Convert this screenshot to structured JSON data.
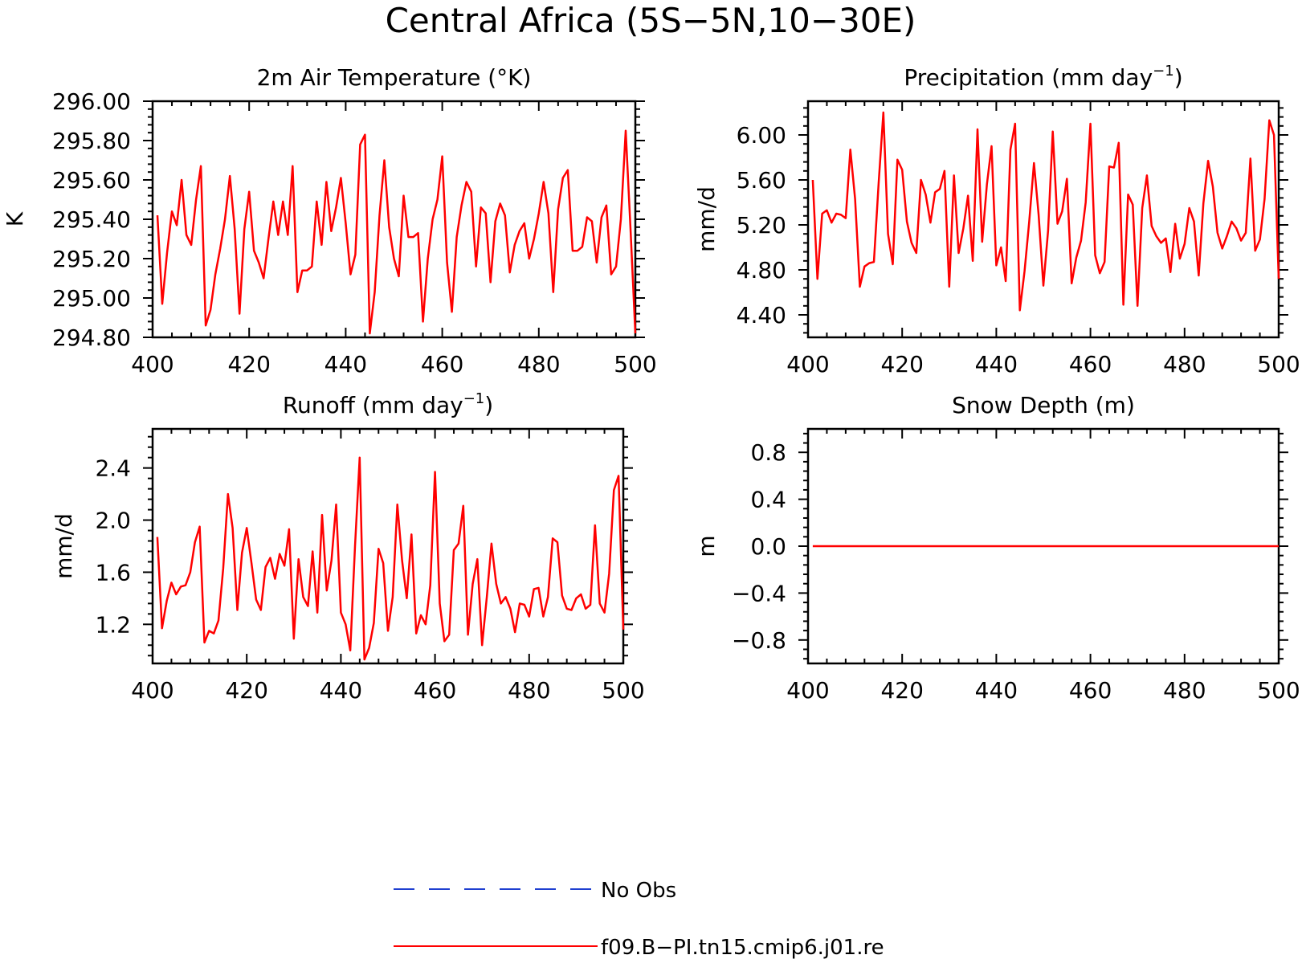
{
  "figure": {
    "title": "Central Africa (5S−5N,10−30E)"
  },
  "legend": [
    {
      "label": "No Obs",
      "color": "#1f3fd0",
      "dash": true
    },
    {
      "label": "f09.B−PI.tn15.cmip6.j01.re",
      "color": "#ff0000",
      "dash": false
    }
  ],
  "chart_data": [
    {
      "type": "line",
      "title": "2m Air Temperature (°K)",
      "ylabel": "K",
      "xlim": [
        400,
        500
      ],
      "ylim": [
        294.8,
        296.0
      ],
      "xticks": [
        400,
        420,
        440,
        460,
        480,
        500
      ],
      "yticks": [
        294.8,
        295.0,
        295.2,
        295.4,
        295.6,
        295.8,
        296.0
      ],
      "ytick_labels": [
        "294.80",
        "295.00",
        "295.20",
        "295.40",
        "295.60",
        "295.80",
        "296.00"
      ],
      "series": [
        {
          "name": "f09.B−PI.tn15.cmip6.j01.re",
          "color": "#ff0000",
          "x_start": 401,
          "values": [
            295.42,
            294.97,
            295.23,
            295.44,
            295.37,
            295.6,
            295.32,
            295.27,
            295.5,
            295.67,
            294.86,
            294.94,
            295.12,
            295.25,
            295.4,
            295.62,
            295.35,
            294.92,
            295.35,
            295.54,
            295.24,
            295.18,
            295.1,
            295.3,
            295.49,
            295.32,
            295.49,
            295.32,
            295.67,
            295.03,
            295.14,
            295.14,
            295.16,
            295.49,
            295.27,
            295.59,
            295.34,
            295.46,
            295.61,
            295.38,
            295.12,
            295.22,
            295.78,
            295.83,
            294.82,
            295.03,
            295.42,
            295.7,
            295.36,
            295.2,
            295.11,
            295.52,
            295.31,
            295.31,
            295.33,
            294.88,
            295.2,
            295.4,
            295.5,
            295.72,
            295.18,
            294.93,
            295.31,
            295.47,
            295.59,
            295.54,
            295.16,
            295.46,
            295.43,
            295.08,
            295.39,
            295.48,
            295.42,
            295.13,
            295.27,
            295.34,
            295.38,
            295.2,
            295.3,
            295.43,
            295.59,
            295.43,
            295.03,
            295.45,
            295.61,
            295.65,
            295.24,
            295.24,
            295.26,
            295.41,
            295.39,
            295.18,
            295.41,
            295.47,
            295.12,
            295.16,
            295.4,
            295.85,
            295.35,
            294.82
          ]
        }
      ]
    },
    {
      "type": "line",
      "title": "Precipitation (mm day",
      "title_sup": "−1",
      "title_end": ")",
      "ylabel": "mm/d",
      "xlim": [
        400,
        500
      ],
      "ylim": [
        4.2,
        6.3
      ],
      "xticks": [
        400,
        420,
        440,
        460,
        480,
        500
      ],
      "yticks": [
        4.4,
        4.8,
        5.2,
        5.6,
        6.0
      ],
      "ytick_labels": [
        "4.40",
        "4.80",
        "5.20",
        "5.60",
        "6.00"
      ],
      "series": [
        {
          "name": "f09.B−PI.tn15.cmip6.j01.re",
          "color": "#ff0000",
          "x_start": 401,
          "values": [
            5.6,
            4.72,
            5.3,
            5.33,
            5.22,
            5.3,
            5.29,
            5.26,
            5.87,
            5.43,
            4.65,
            4.83,
            4.86,
            4.87,
            5.57,
            6.2,
            5.12,
            4.85,
            5.78,
            5.69,
            5.23,
            5.04,
            4.95,
            5.6,
            5.47,
            5.22,
            5.49,
            5.52,
            5.68,
            4.65,
            5.64,
            4.95,
            5.17,
            5.46,
            4.88,
            6.05,
            5.05,
            5.56,
            5.9,
            4.84,
            5.0,
            4.7,
            5.87,
            6.1,
            4.44,
            4.79,
            5.23,
            5.75,
            5.29,
            4.66,
            5.15,
            6.03,
            5.21,
            5.32,
            5.61,
            4.68,
            4.91,
            5.06,
            5.4,
            6.1,
            4.93,
            4.77,
            4.87,
            5.72,
            5.71,
            5.93,
            4.49,
            5.47,
            5.38,
            4.48,
            5.35,
            5.64,
            5.19,
            5.1,
            5.04,
            5.08,
            4.78,
            5.21,
            4.9,
            5.03,
            5.35,
            5.23,
            4.75,
            5.39,
            5.77,
            5.54,
            5.13,
            4.99,
            5.1,
            5.23,
            5.17,
            5.06,
            5.13,
            5.79,
            4.97,
            5.07,
            5.43,
            6.13,
            6.0,
            4.72
          ]
        }
      ]
    },
    {
      "type": "line",
      "title": "Runoff (mm day",
      "title_sup": "−1",
      "title_end": ")",
      "ylabel": "mm/d",
      "xlim": [
        400,
        500
      ],
      "ylim": [
        0.9,
        2.7
      ],
      "xticks": [
        400,
        420,
        440,
        460,
        480,
        500
      ],
      "yticks": [
        1.2,
        1.6,
        2.0,
        2.4
      ],
      "ytick_labels": [
        "1.2",
        "1.6",
        "2.0",
        "2.4"
      ],
      "series": [
        {
          "name": "f09.B−PI.tn15.cmip6.j01.re",
          "color": "#ff0000",
          "x_start": 401,
          "values": [
            1.87,
            1.17,
            1.38,
            1.52,
            1.43,
            1.49,
            1.5,
            1.6,
            1.83,
            1.95,
            1.06,
            1.15,
            1.13,
            1.23,
            1.63,
            2.2,
            1.94,
            1.31,
            1.75,
            1.94,
            1.67,
            1.39,
            1.31,
            1.64,
            1.71,
            1.55,
            1.74,
            1.65,
            1.93,
            1.09,
            1.7,
            1.41,
            1.34,
            1.76,
            1.29,
            2.04,
            1.46,
            1.69,
            2.12,
            1.29,
            1.2,
            1.0,
            1.8,
            2.48,
            0.93,
            1.02,
            1.21,
            1.78,
            1.67,
            1.15,
            1.41,
            2.12,
            1.69,
            1.4,
            1.89,
            1.13,
            1.27,
            1.2,
            1.5,
            2.37,
            1.36,
            1.07,
            1.12,
            1.77,
            1.82,
            2.11,
            1.12,
            1.51,
            1.7,
            1.04,
            1.41,
            1.82,
            1.51,
            1.36,
            1.41,
            1.32,
            1.14,
            1.36,
            1.35,
            1.26,
            1.47,
            1.48,
            1.26,
            1.41,
            1.86,
            1.83,
            1.42,
            1.32,
            1.31,
            1.4,
            1.43,
            1.32,
            1.35,
            1.96,
            1.36,
            1.29,
            1.59,
            2.23,
            2.34,
            1.16
          ]
        }
      ]
    },
    {
      "type": "line",
      "title": "Snow Depth (m)",
      "ylabel": "m",
      "xlim": [
        400,
        500
      ],
      "ylim": [
        -1.0,
        1.0
      ],
      "xticks": [
        400,
        420,
        440,
        460,
        480,
        500
      ],
      "yticks": [
        -0.8,
        -0.4,
        0.0,
        0.4,
        0.8
      ],
      "ytick_labels": [
        "−0.8",
        "−0.4",
        "0.0",
        "0.4",
        "0.8"
      ],
      "series": [
        {
          "name": "f09.B−PI.tn15.cmip6.j01.re",
          "color": "#ff0000",
          "x": [
            401,
            500
          ],
          "values": [
            0.0,
            0.0
          ]
        }
      ]
    }
  ]
}
